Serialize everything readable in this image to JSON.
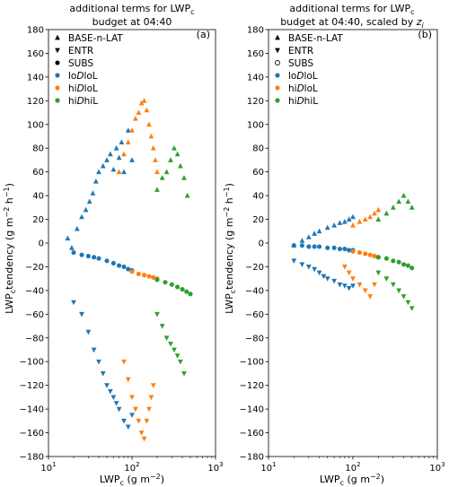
{
  "colors": {
    "loDloL": "#1f77b4",
    "hiDloL": "#ff7f0e",
    "hiDhiL": "#2ca02c"
  },
  "chart_data": [
    {
      "type": "scatter",
      "title_line1": "additional terms for LWP",
      "title_sub1": "c",
      "title_line2": "budget at 04:40",
      "title_line2_extra": "",
      "panel_label": "(a)",
      "xlabel": "LWP",
      "xlabel_sub": "c",
      "xlabel_units": "(g m",
      "xlabel_units_sup": "−2",
      "xlabel_units_close": ")",
      "ylabel": "LWP",
      "ylabel_sub": "c",
      "ylabel_rest": "tendency (g m",
      "ylabel_sup1": "−2",
      "ylabel_mid": "h",
      "ylabel_sup2": "−1",
      "ylabel_close": ")",
      "xscale": "log",
      "xlim": [
        10,
        1000
      ],
      "ylim": [
        -180,
        180
      ],
      "xticks": [
        {
          "label": "10",
          "sup": "1"
        },
        {
          "label": "10",
          "sup": "2"
        },
        {
          "label": "10",
          "sup": "3"
        }
      ],
      "yticks": [
        "−180",
        "−160",
        "−140",
        "−120",
        "−100",
        "−80",
        "−60",
        "−40",
        "−20",
        "0",
        "20",
        "40",
        "60",
        "80",
        "100",
        "120",
        "140",
        "160",
        "180"
      ],
      "legend_markers": [
        {
          "marker": "^",
          "label": "BASE-n-LAT"
        },
        {
          "marker": "v",
          "label": "ENTR"
        },
        {
          "marker": "o",
          "label": "SUBS"
        }
      ],
      "legend_groups": [
        {
          "key": "loDloL",
          "pre": "lo",
          "d": "D",
          "post": "loL"
        },
        {
          "key": "hiDloL",
          "pre": "hi",
          "d": "D",
          "post": "loL"
        },
        {
          "key": "hiDhiL",
          "pre": "hi",
          "d": "D",
          "post": "hiL"
        }
      ],
      "legend_position": "upper-left",
      "series": [
        {
          "group": "loDloL",
          "term": "BASE-n-LAT",
          "marker": "^",
          "x": [
            17,
            19,
            22,
            25,
            28,
            31,
            34,
            37,
            40,
            45,
            50,
            55,
            60,
            65,
            70,
            75,
            80,
            90,
            100
          ],
          "y": [
            4,
            -4,
            12,
            22,
            28,
            35,
            42,
            52,
            60,
            65,
            70,
            75,
            62,
            80,
            72,
            85,
            60,
            95,
            70
          ]
        },
        {
          "group": "hiDloL",
          "term": "BASE-n-LAT",
          "marker": "^",
          "x": [
            70,
            80,
            90,
            100,
            110,
            120,
            130,
            140,
            150,
            160,
            170,
            180,
            190,
            200
          ],
          "y": [
            60,
            75,
            85,
            95,
            105,
            110,
            118,
            120,
            112,
            100,
            90,
            80,
            70,
            60
          ]
        },
        {
          "group": "hiDhiL",
          "term": "BASE-n-LAT",
          "marker": "^",
          "x": [
            200,
            230,
            260,
            290,
            320,
            350,
            380,
            420,
            460
          ],
          "y": [
            45,
            55,
            60,
            70,
            80,
            75,
            65,
            55,
            40
          ]
        },
        {
          "group": "loDloL",
          "term": "SUBS",
          "marker": "o",
          "x": [
            20,
            25,
            30,
            35,
            40,
            50,
            60,
            70,
            80,
            90,
            100
          ],
          "y": [
            -8,
            -10,
            -11,
            -12,
            -13,
            -15,
            -17,
            -19,
            -20,
            -22,
            -23
          ]
        },
        {
          "group": "hiDloL",
          "term": "SUBS",
          "marker": "o",
          "x": [
            100,
            120,
            140,
            160,
            180,
            200
          ],
          "y": [
            -24,
            -26,
            -27,
            -28,
            -29,
            -30
          ]
        },
        {
          "group": "hiDhiL",
          "term": "SUBS",
          "marker": "o",
          "x": [
            200,
            250,
            300,
            350,
            400,
            450,
            500
          ],
          "y": [
            -31,
            -33,
            -35,
            -37,
            -39,
            -41,
            -43
          ]
        },
        {
          "group": "loDloL",
          "term": "ENTR",
          "marker": "v",
          "x": [
            20,
            25,
            30,
            35,
            40,
            45,
            50,
            55,
            60,
            65,
            70,
            80,
            90,
            100
          ],
          "y": [
            -50,
            -60,
            -75,
            -90,
            -100,
            -110,
            -120,
            -125,
            -130,
            -135,
            -140,
            -150,
            -155,
            -145
          ]
        },
        {
          "group": "hiDloL",
          "term": "ENTR",
          "marker": "v",
          "x": [
            80,
            90,
            100,
            110,
            120,
            130,
            140,
            150,
            160,
            170,
            180
          ],
          "y": [
            -100,
            -115,
            -130,
            -140,
            -150,
            -160,
            -165,
            -150,
            -140,
            -130,
            -120
          ]
        },
        {
          "group": "hiDhiL",
          "term": "ENTR",
          "marker": "v",
          "x": [
            200,
            230,
            260,
            290,
            320,
            350,
            380,
            420
          ],
          "y": [
            -60,
            -70,
            -80,
            -85,
            -90,
            -95,
            -100,
            -110
          ]
        }
      ]
    },
    {
      "type": "scatter",
      "title_line1": "additional terms for LWP",
      "title_sub1": "c",
      "title_line2": "budget at 04:40, scaled by ",
      "title_line2_extra": "z",
      "title_line2_extra_sub": "i",
      "panel_label": "(b)",
      "xlabel": "LWP",
      "xlabel_sub": "c",
      "xlabel_units": "(g m",
      "xlabel_units_sup": "−2",
      "xlabel_units_close": ")",
      "ylabel": "LWP",
      "ylabel_sub": "c",
      "ylabel_rest": "tendency (g m",
      "ylabel_sup1": "−2",
      "ylabel_mid": "h",
      "ylabel_sup2": "−1",
      "ylabel_close": ")",
      "xscale": "log",
      "xlim": [
        10,
        1000
      ],
      "ylim": [
        -180,
        180
      ],
      "xticks": [
        {
          "label": "10",
          "sup": "1"
        },
        {
          "label": "10",
          "sup": "2"
        },
        {
          "label": "10",
          "sup": "3"
        }
      ],
      "yticks": [
        "−180",
        "−160",
        "−140",
        "−120",
        "−100",
        "−80",
        "−60",
        "−40",
        "−20",
        "0",
        "20",
        "40",
        "60",
        "80",
        "100",
        "120",
        "140",
        "160",
        "180"
      ],
      "legend_markers": [
        {
          "marker": "^",
          "label": "BASE-n-LAT"
        },
        {
          "marker": "v",
          "label": "ENTR"
        },
        {
          "marker": "o",
          "label": "SUBS"
        }
      ],
      "legend_groups": [
        {
          "key": "loDloL",
          "pre": "lo",
          "d": "D",
          "post": "loL"
        },
        {
          "key": "hiDloL",
          "pre": "hi",
          "d": "D",
          "post": "loL"
        },
        {
          "key": "hiDhiL",
          "pre": "hi",
          "d": "D",
          "post": "hiL"
        }
      ],
      "legend_position": "upper-left",
      "series": [
        {
          "group": "loDloL",
          "term": "BASE-n-LAT",
          "marker": "^",
          "x": [
            20,
            25,
            30,
            35,
            40,
            50,
            60,
            70,
            80,
            90,
            100
          ],
          "y": [
            -2,
            2,
            5,
            8,
            10,
            13,
            15,
            17,
            18,
            20,
            22
          ]
        },
        {
          "group": "hiDloL",
          "term": "BASE-n-LAT",
          "marker": "^",
          "x": [
            100,
            120,
            140,
            160,
            180,
            200
          ],
          "y": [
            15,
            18,
            20,
            22,
            25,
            28
          ]
        },
        {
          "group": "hiDhiL",
          "term": "BASE-n-LAT",
          "marker": "^",
          "x": [
            200,
            250,
            300,
            350,
            400,
            450,
            500
          ],
          "y": [
            20,
            25,
            30,
            35,
            40,
            35,
            30
          ]
        },
        {
          "group": "loDloL",
          "term": "SUBS",
          "marker": "o",
          "x": [
            20,
            25,
            30,
            35,
            40,
            50,
            60,
            70,
            80,
            90,
            100
          ],
          "y": [
            -2,
            -2,
            -3,
            -3,
            -3,
            -4,
            -4,
            -5,
            -5,
            -6,
            -6
          ]
        },
        {
          "group": "hiDloL",
          "term": "SUBS",
          "marker": "o",
          "x": [
            100,
            120,
            140,
            160,
            180,
            200
          ],
          "y": [
            -7,
            -8,
            -9,
            -10,
            -11,
            -12
          ]
        },
        {
          "group": "hiDhiL",
          "term": "SUBS",
          "marker": "o",
          "x": [
            200,
            250,
            300,
            350,
            400,
            450,
            500
          ],
          "y": [
            -12,
            -13,
            -15,
            -16,
            -18,
            -19,
            -21
          ]
        },
        {
          "group": "loDloL",
          "term": "ENTR",
          "marker": "v",
          "x": [
            20,
            25,
            30,
            35,
            40,
            45,
            50,
            60,
            70,
            80,
            90,
            100
          ],
          "y": [
            -15,
            -18,
            -20,
            -22,
            -25,
            -28,
            -30,
            -32,
            -35,
            -36,
            -38,
            -36
          ]
        },
        {
          "group": "hiDloL",
          "term": "ENTR",
          "marker": "v",
          "x": [
            80,
            90,
            100,
            120,
            140,
            160,
            180
          ],
          "y": [
            -20,
            -25,
            -30,
            -35,
            -40,
            -45,
            -35
          ]
        },
        {
          "group": "hiDhiL",
          "term": "ENTR",
          "marker": "v",
          "x": [
            200,
            250,
            300,
            350,
            400,
            450,
            500
          ],
          "y": [
            -25,
            -30,
            -35,
            -40,
            -45,
            -50,
            -55
          ]
        }
      ]
    }
  ]
}
